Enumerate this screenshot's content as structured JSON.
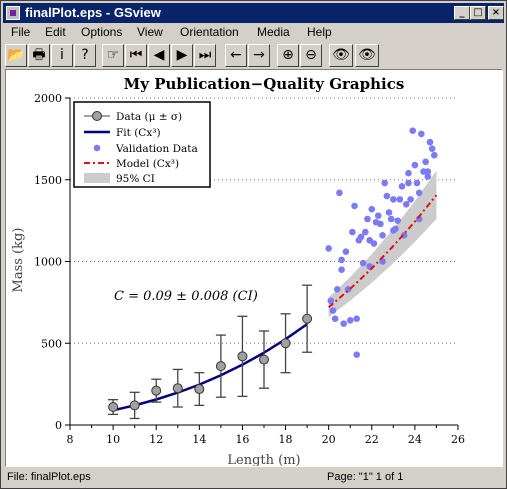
{
  "window": {
    "title": "finalPlot.eps - GSview"
  },
  "title_buttons": {
    "minimize": "_",
    "maximize": "□",
    "close": "×"
  },
  "menu": [
    "File",
    "Edit",
    "Options",
    "View",
    "Orientation",
    "Media",
    "Help"
  ],
  "toolbar": {
    "buttons": [
      {
        "icon": "open-folder-icon",
        "glyph": "📂"
      },
      {
        "icon": "print-icon",
        "glyph": "🖶"
      },
      {
        "icon": "info-icon",
        "glyph": "i"
      },
      {
        "icon": "help-icon",
        "glyph": "?"
      },
      {
        "icon": "goto-page-icon",
        "glyph": "☞"
      },
      {
        "icon": "first-page-icon",
        "glyph": "⏮"
      },
      {
        "icon": "prev-page-icon",
        "glyph": "◀"
      },
      {
        "icon": "next-page-icon",
        "glyph": "▶"
      },
      {
        "icon": "last-page-icon",
        "glyph": "⏭"
      },
      {
        "icon": "back-icon",
        "glyph": "←"
      },
      {
        "icon": "forward-icon",
        "glyph": "→"
      },
      {
        "icon": "zoom-in-icon",
        "glyph": "⊕"
      },
      {
        "icon": "zoom-out-icon",
        "glyph": "⊖"
      },
      {
        "icon": "find-icon",
        "glyph": "👁"
      },
      {
        "icon": "find-next-icon",
        "glyph": "👁"
      }
    ]
  },
  "status": {
    "file": "File: finalPlot.eps",
    "page": "Page: \"1\"  1 of 1"
  },
  "chart_data": {
    "type": "scatter",
    "title": "My Publication−Quality Graphics",
    "xlabel": "Length (m)",
    "ylabel": "Mass (kg)",
    "xlim": [
      8,
      26
    ],
    "ylim": [
      0,
      2000
    ],
    "xticks": [
      "8",
      "10",
      "12",
      "14",
      "16",
      "18",
      "20",
      "22",
      "24",
      "26"
    ],
    "yticks": [
      "0",
      "500",
      "1000",
      "1500",
      "2000"
    ],
    "grid": "horizontal dotted",
    "legend_position": "top-left",
    "annotation": "C = 0.09 ± 0.008 (CI)",
    "colors": {
      "fit": "#000080",
      "validation": "#7b7bf5",
      "model": "#e01010",
      "ci": "#cccccc",
      "data_marker": "#a0a0a0"
    },
    "series": [
      {
        "name": "Data (μ ± σ)",
        "kind": "errorbar",
        "x": [
          10,
          11,
          12,
          13,
          14,
          15,
          16,
          17,
          18,
          19
        ],
        "y": [
          110,
          120,
          210,
          225,
          220,
          360,
          420,
          400,
          500,
          650
        ],
        "err": [
          45,
          80,
          70,
          115,
          100,
          190,
          245,
          175,
          180,
          205
        ]
      },
      {
        "name": "Fit (Cx³)",
        "kind": "line",
        "x": [
          10,
          11,
          12,
          13,
          14,
          15,
          16,
          17,
          18,
          19
        ],
        "y": [
          90,
          120,
          156,
          198,
          247,
          304,
          369,
          442,
          525,
          617
        ]
      },
      {
        "name": "Validation Data",
        "kind": "scatter",
        "x": [
          20.0,
          20.2,
          20.3,
          20.4,
          20.5,
          20.6,
          20.7,
          20.8,
          20.9,
          21.0,
          21.1,
          21.2,
          21.3,
          21.4,
          21.5,
          21.6,
          21.7,
          21.8,
          21.9,
          22.0,
          22.1,
          22.2,
          22.3,
          22.4,
          22.5,
          22.6,
          22.7,
          22.8,
          22.9,
          23.0,
          23.1,
          23.2,
          23.3,
          23.4,
          23.5,
          23.6,
          23.7,
          23.8,
          23.9,
          24.0,
          24.1,
          24.2,
          24.3,
          24.4,
          24.5,
          24.6,
          24.7,
          24.8,
          24.9,
          20.1,
          21.3,
          22.5,
          23.7,
          24.2,
          20.6,
          21.9,
          23.0,
          24.6
        ],
        "y": [
          1080,
          700,
          650,
          830,
          1420,
          950,
          620,
          1060,
          830,
          640,
          1180,
          1340,
          650,
          1130,
          1150,
          990,
          1180,
          1260,
          970,
          1320,
          1110,
          1240,
          1280,
          1230,
          1160,
          1480,
          1400,
          1300,
          1260,
          1380,
          1200,
          1250,
          1380,
          1460,
          1160,
          1350,
          1540,
          1380,
          1800,
          1590,
          1480,
          1420,
          1780,
          1550,
          1610,
          1520,
          1730,
          1690,
          1650,
          760,
          430,
          1000,
          1480,
          1260,
          1010,
          1130,
          1190,
          1550
        ]
      },
      {
        "name": "Model (Cx³)",
        "kind": "line",
        "x": [
          20,
          21,
          22,
          23,
          24,
          25
        ],
        "y": [
          720,
          833,
          958,
          1095,
          1244,
          1406
        ]
      },
      {
        "name": "95% CI",
        "kind": "band",
        "x": [
          20,
          21,
          22,
          23,
          24,
          25
        ],
        "lower": [
          660,
          760,
          870,
          990,
          1120,
          1260
        ],
        "upper": [
          780,
          905,
          1045,
          1200,
          1370,
          1555
        ]
      }
    ]
  }
}
